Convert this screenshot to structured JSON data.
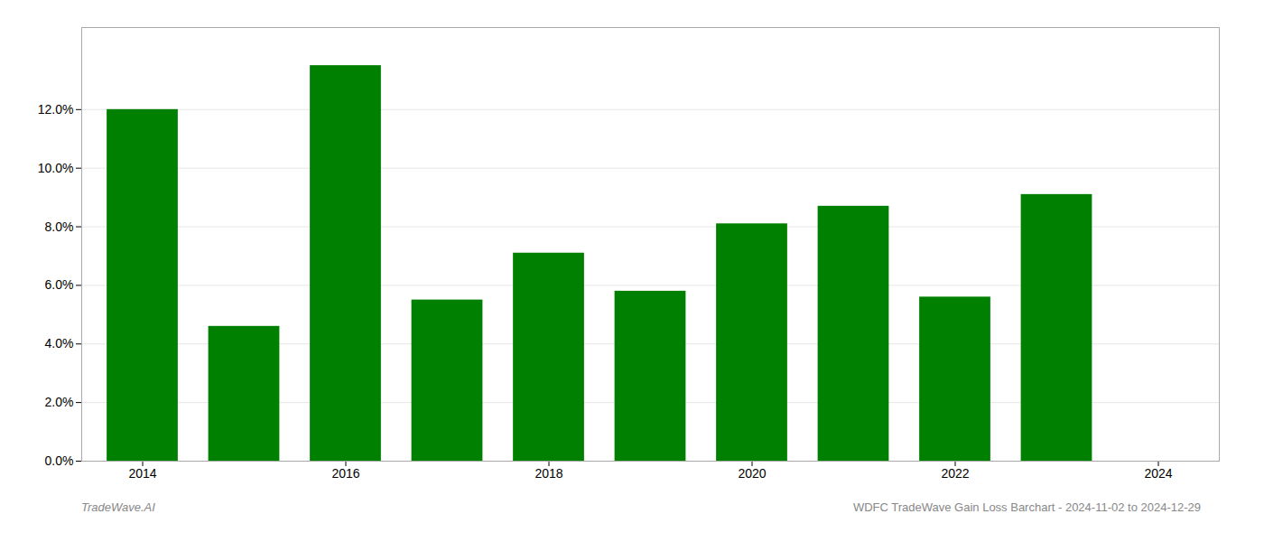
{
  "chart_data": {
    "type": "bar",
    "x": [
      2014,
      2015,
      2016,
      2017,
      2018,
      2019,
      2020,
      2021,
      2022,
      2023
    ],
    "values": [
      0.12,
      0.046,
      0.135,
      0.055,
      0.071,
      0.058,
      0.081,
      0.087,
      0.056,
      0.091
    ],
    "color": "#008000",
    "xlim": [
      2013.4,
      2024.6
    ],
    "xticks": [
      2014,
      2016,
      2018,
      2020,
      2022,
      2024
    ],
    "ylim": [
      0,
      0.148
    ],
    "yticks": [
      {
        "value": 0.0,
        "label": "0.0%"
      },
      {
        "value": 0.02,
        "label": "2.0%"
      },
      {
        "value": 0.04,
        "label": "4.0%"
      },
      {
        "value": 0.06,
        "label": "6.0%"
      },
      {
        "value": 0.08,
        "label": "8.0%"
      },
      {
        "value": 0.1,
        "label": "10.0%"
      },
      {
        "value": 0.12,
        "label": "12.0%"
      }
    ],
    "grid": true,
    "annotations": [
      "TradeWave.AI",
      "WDFC TradeWave Gain Loss Barchart - 2024-11-02 to 2024-12-29"
    ]
  }
}
